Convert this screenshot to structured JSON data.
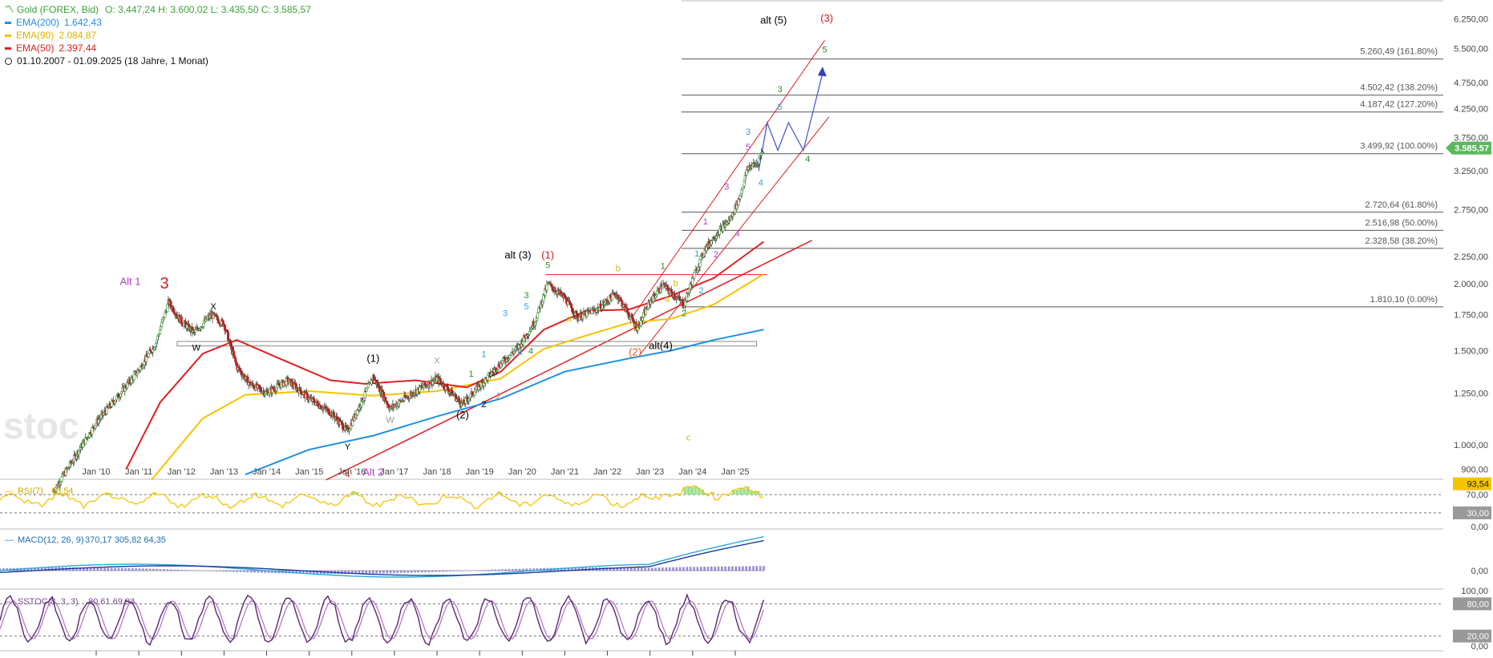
{
  "instrument": {
    "title": "Gold (FOREX, Bid)",
    "ohlc": "O: 3.447,24  H: 3.600,02  L: 3.435,50  C: 3.585,57",
    "title_color": "#3aa33a"
  },
  "legend": [
    {
      "name": "EMA(200)",
      "value": "1.642,43",
      "color": "#1e90e0"
    },
    {
      "name": "EMA(90)",
      "value": "2.084,87",
      "color": "#f5c400"
    },
    {
      "name": "EMA(50)",
      "value": "2.397,44",
      "color": "#e02020"
    }
  ],
  "period": "01.10.2007 - 01.09.2025  (18 Jahre, 1 Monat)",
  "watermark": "stoc",
  "chart_data": {
    "type": "candlestick",
    "x_ticks": [
      "Jan '10",
      "Jan '11",
      "Jan '12",
      "Jan '13",
      "Jan '14",
      "Jan '15",
      "Jan '16",
      "Jan '17",
      "Jan '18",
      "Jan '19",
      "Jan '20",
      "Jan '21",
      "Jan '22",
      "Jan '23",
      "Jan '24",
      "Jan '25"
    ],
    "y_ticks": [
      "900,00",
      "1.000,00",
      "1.250,00",
      "1.500,00",
      "1.750,00",
      "2.000,00",
      "2.250,00",
      "2.750,00",
      "3.250,00",
      "3.750,00",
      "4.250,00",
      "4.750,00",
      "5.500,00",
      "6.250,00"
    ],
    "y_tick_values": [
      900,
      1000,
      1250,
      1500,
      1750,
      2000,
      2250,
      2750,
      3250,
      3750,
      4250,
      4750,
      5500,
      6250
    ],
    "y_scale": "log",
    "last_price": {
      "label": "3.585,57",
      "value": 3585.57,
      "color": "#5cb85c"
    },
    "price_anchors": [
      {
        "t": 2009.0,
        "v": 820
      },
      {
        "t": 2009.5,
        "v": 950
      },
      {
        "t": 2010.0,
        "v": 1100
      },
      {
        "t": 2010.5,
        "v": 1230
      },
      {
        "t": 2011.0,
        "v": 1380
      },
      {
        "t": 2011.4,
        "v": 1550
      },
      {
        "t": 2011.7,
        "v": 1850
      },
      {
        "t": 2012.0,
        "v": 1700
      },
      {
        "t": 2012.3,
        "v": 1620
      },
      {
        "t": 2012.7,
        "v": 1750
      },
      {
        "t": 2013.0,
        "v": 1680
      },
      {
        "t": 2013.3,
        "v": 1400
      },
      {
        "t": 2013.6,
        "v": 1300
      },
      {
        "t": 2014.0,
        "v": 1250
      },
      {
        "t": 2014.5,
        "v": 1320
      },
      {
        "t": 2015.0,
        "v": 1220
      },
      {
        "t": 2015.5,
        "v": 1150
      },
      {
        "t": 2015.9,
        "v": 1060
      },
      {
        "t": 2016.5,
        "v": 1340
      },
      {
        "t": 2016.9,
        "v": 1170
      },
      {
        "t": 2017.5,
        "v": 1260
      },
      {
        "t": 2018.0,
        "v": 1330
      },
      {
        "t": 2018.6,
        "v": 1190
      },
      {
        "t": 2019.0,
        "v": 1290
      },
      {
        "t": 2019.5,
        "v": 1420
      },
      {
        "t": 2019.9,
        "v": 1520
      },
      {
        "t": 2020.3,
        "v": 1700
      },
      {
        "t": 2020.6,
        "v": 2000
      },
      {
        "t": 2021.0,
        "v": 1880
      },
      {
        "t": 2021.3,
        "v": 1730
      },
      {
        "t": 2021.8,
        "v": 1800
      },
      {
        "t": 2022.2,
        "v": 1920
      },
      {
        "t": 2022.7,
        "v": 1650
      },
      {
        "t": 2023.0,
        "v": 1850
      },
      {
        "t": 2023.3,
        "v": 1990
      },
      {
        "t": 2023.8,
        "v": 1830
      },
      {
        "t": 2024.0,
        "v": 2040
      },
      {
        "t": 2024.3,
        "v": 2330
      },
      {
        "t": 2024.6,
        "v": 2500
      },
      {
        "t": 2024.9,
        "v": 2650
      },
      {
        "t": 2025.1,
        "v": 2900
      },
      {
        "t": 2025.3,
        "v": 3300
      },
      {
        "t": 2025.5,
        "v": 3350
      },
      {
        "t": 2025.67,
        "v": 3585
      }
    ],
    "ema200": [
      {
        "t": 2013.5,
        "v": 880
      },
      {
        "t": 2015.0,
        "v": 980
      },
      {
        "t": 2016.5,
        "v": 1040
      },
      {
        "t": 2018.0,
        "v": 1130
      },
      {
        "t": 2019.5,
        "v": 1220
      },
      {
        "t": 2021.0,
        "v": 1370
      },
      {
        "t": 2022.5,
        "v": 1450
      },
      {
        "t": 2023.5,
        "v": 1500
      },
      {
        "t": 2024.5,
        "v": 1570
      },
      {
        "t": 2025.67,
        "v": 1642
      }
    ],
    "ema90": [
      {
        "t": 2011.3,
        "v": 860
      },
      {
        "t": 2012.5,
        "v": 1120
      },
      {
        "t": 2013.5,
        "v": 1240
      },
      {
        "t": 2015.0,
        "v": 1260
      },
      {
        "t": 2016.5,
        "v": 1235
      },
      {
        "t": 2018.0,
        "v": 1260
      },
      {
        "t": 2019.5,
        "v": 1330
      },
      {
        "t": 2020.5,
        "v": 1510
      },
      {
        "t": 2021.5,
        "v": 1600
      },
      {
        "t": 2022.5,
        "v": 1690
      },
      {
        "t": 2023.5,
        "v": 1720
      },
      {
        "t": 2024.5,
        "v": 1830
      },
      {
        "t": 2025.67,
        "v": 2085
      }
    ],
    "ema50": [
      {
        "t": 2010.7,
        "v": 900
      },
      {
        "t": 2011.5,
        "v": 1200
      },
      {
        "t": 2012.5,
        "v": 1480
      },
      {
        "t": 2013.3,
        "v": 1570
      },
      {
        "t": 2014.3,
        "v": 1450
      },
      {
        "t": 2015.5,
        "v": 1320
      },
      {
        "t": 2016.3,
        "v": 1300
      },
      {
        "t": 2017.5,
        "v": 1320
      },
      {
        "t": 2018.7,
        "v": 1280
      },
      {
        "t": 2019.5,
        "v": 1370
      },
      {
        "t": 2020.5,
        "v": 1640
      },
      {
        "t": 2021.5,
        "v": 1780
      },
      {
        "t": 2022.5,
        "v": 1790
      },
      {
        "t": 2023.5,
        "v": 1900
      },
      {
        "t": 2024.5,
        "v": 2050
      },
      {
        "t": 2025.67,
        "v": 2397
      }
    ],
    "fib_levels": [
      {
        "label": "5.260,49 (161.80%)",
        "value": 5260.49
      },
      {
        "label": "4.502,42 (138.20%)",
        "value": 4502.42
      },
      {
        "label": "4.187,42 (127.20%)",
        "value": 4187.42
      },
      {
        "label": "3.499,92 (100.00%)",
        "value": 3499.92
      },
      {
        "label": "2.720,64 (61.80%)",
        "value": 2720.64
      },
      {
        "label": "2.516,98 (50.00%)",
        "value": 2516.98
      },
      {
        "label": "2.328,58 (38.20%)",
        "value": 2328.58
      },
      {
        "label": "1.810,10 (0.00%)",
        "value": 1810.1
      }
    ],
    "wave_labels": [
      {
        "text": "Alt 1",
        "t": 2010.8,
        "v": 1990,
        "color": "#b040c0"
      },
      {
        "text": "3",
        "t": 2011.6,
        "v": 1960,
        "color": "#d02020"
      },
      {
        "text": "X",
        "t": 2012.75,
        "v": 1790,
        "color": "#000000"
      },
      {
        "text": "W",
        "t": 2012.35,
        "v": 1500,
        "color": "#000000"
      },
      {
        "text": "(1)",
        "t": 2016.5,
        "v": 1430,
        "color": "#000000"
      },
      {
        "text": "X",
        "t": 2018.0,
        "v": 1420,
        "color": "#999999"
      },
      {
        "text": "W",
        "t": 2016.9,
        "v": 1100,
        "color": "#999999"
      },
      {
        "text": "Y",
        "t": 2015.9,
        "v": 980,
        "color": "#000000"
      },
      {
        "text": "4",
        "t": 2015.9,
        "v": 870,
        "color": "#d02020"
      },
      {
        "text": "Alt 2",
        "t": 2016.5,
        "v": 875,
        "color": "#b040c0"
      },
      {
        "text": "(2)",
        "t": 2018.6,
        "v": 1120,
        "color": "#000000"
      },
      {
        "text": "alt (3)",
        "t": 2019.9,
        "v": 2230,
        "color": "#000000"
      },
      {
        "text": "(1)",
        "t": 2020.6,
        "v": 2230,
        "color": "#d02020"
      },
      {
        "text": "5",
        "t": 2020.6,
        "v": 2140,
        "color": "#2a8a2a"
      },
      {
        "text": "b",
        "t": 2022.25,
        "v": 2110,
        "color": "#c8c000"
      },
      {
        "text": "a",
        "t": 2021.1,
        "v": 1700,
        "color": "#c8c000"
      },
      {
        "text": "(2)",
        "t": 2022.65,
        "v": 1470,
        "color": "#e06020"
      },
      {
        "text": "alt(4)",
        "t": 2023.25,
        "v": 1510,
        "color": "#000000"
      },
      {
        "text": "c",
        "t": 2023.9,
        "v": 1020,
        "color": "#c8c000"
      },
      {
        "text": "1",
        "t": 2023.3,
        "v": 2130,
        "color": "#2a8a2a"
      },
      {
        "text": "3",
        "t": 2019.6,
        "v": 1740,
        "color": "#2aa0e0"
      },
      {
        "text": "5",
        "t": 2020.1,
        "v": 1790,
        "color": "#2aa0e0"
      },
      {
        "text": "3",
        "t": 2020.1,
        "v": 1880,
        "color": "#2a8a2a"
      },
      {
        "text": "1",
        "t": 2019.1,
        "v": 1460,
        "color": "#2aa0e0"
      },
      {
        "text": "1",
        "t": 2018.8,
        "v": 1340,
        "color": "#2a8a2a"
      },
      {
        "text": "4",
        "t": 2019.95,
        "v": 1470,
        "color": "#2aa0e0"
      },
      {
        "text": "4",
        "t": 2020.2,
        "v": 1480,
        "color": "#2a8a2a"
      },
      {
        "text": "2",
        "t": 2019.45,
        "v": 1220,
        "color": "#999999"
      },
      {
        "text": "2",
        "t": 2019.1,
        "v": 1175,
        "color": "#000000"
      },
      {
        "text": "a",
        "t": 2023.4,
        "v": 1850,
        "color": "#c8c000"
      },
      {
        "text": "b",
        "t": 2023.6,
        "v": 1980,
        "color": "#c8c000"
      },
      {
        "text": "c",
        "t": 2022.65,
        "v": 1640,
        "color": "#c8c000"
      },
      {
        "text": "1",
        "t": 2024.1,
        "v": 2250,
        "color": "#2aa0e0"
      },
      {
        "text": "2",
        "t": 2024.2,
        "v": 1920,
        "color": "#2aa0e0"
      },
      {
        "text": "2",
        "t": 2023.8,
        "v": 1740,
        "color": "#2a8a2a"
      },
      {
        "text": "1",
        "t": 2024.3,
        "v": 2580,
        "color": "#b040c0"
      },
      {
        "text": "2",
        "t": 2024.55,
        "v": 2240,
        "color": "#b040c0"
      },
      {
        "text": "3",
        "t": 2024.8,
        "v": 3000,
        "color": "#b040c0"
      },
      {
        "text": "4",
        "t": 2025.05,
        "v": 2450,
        "color": "#b040c0"
      },
      {
        "text": "5",
        "t": 2025.3,
        "v": 3560,
        "color": "#b040c0"
      },
      {
        "text": "3",
        "t": 2025.3,
        "v": 3800,
        "color": "#2aa0e0"
      },
      {
        "text": "4",
        "t": 2025.6,
        "v": 3050,
        "color": "#2aa0e0"
      },
      {
        "text": "5",
        "t": 2026.05,
        "v": 4230,
        "color": "#2aa0e0"
      },
      {
        "text": "3",
        "t": 2026.05,
        "v": 4560,
        "color": "#2a8a2a"
      },
      {
        "text": "4",
        "t": 2026.7,
        "v": 3380,
        "color": "#2a8a2a"
      },
      {
        "text": "5",
        "t": 2027.1,
        "v": 5410,
        "color": "#2a8a2a"
      },
      {
        "text": "alt (5)",
        "t": 2025.9,
        "v": 6120,
        "color": "#000000"
      },
      {
        "text": "(3)",
        "t": 2027.15,
        "v": 6180,
        "color": "#d02020"
      }
    ],
    "indicators": [
      {
        "name": "RSI(7)",
        "values_label": "93,54",
        "y_ticks": [
          "70,00",
          "30,00",
          "0,00"
        ],
        "badges": [
          {
            "label": "93,54",
            "color": "#f5c400"
          },
          {
            "label": "30,00",
            "color": "#999999"
          }
        ]
      },
      {
        "name": "MACD(12, 26, 9)",
        "values_label": "370,17  305,82  64,35",
        "y_ticks": [
          "0,00"
        ]
      },
      {
        "name": "SSTOC(3, 3, 3)",
        "values_label": "80,61  69,93",
        "y_ticks": [
          "100,00",
          "0,00"
        ],
        "badges": [
          {
            "label": "80,00",
            "color": "#999999"
          },
          {
            "label": "20,00",
            "color": "#999999"
          }
        ]
      }
    ]
  }
}
